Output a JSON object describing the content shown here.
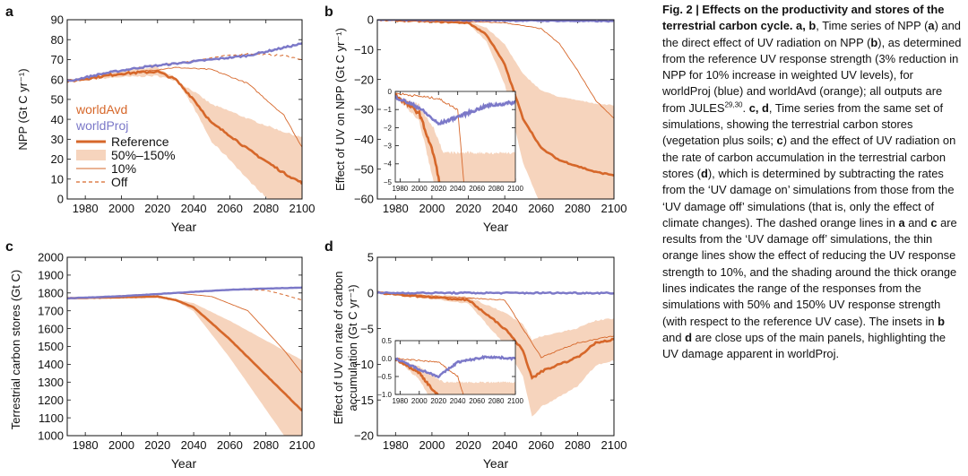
{
  "colors": {
    "orange": "#d6672a",
    "band": "#f6d4bd",
    "blue": "#7b78c8",
    "blueBand": "#c9c7ea"
  },
  "panels": {
    "a": {
      "letter": "a",
      "ylabel": "NPP (Gt C yr⁻¹)"
    },
    "b": {
      "letter": "b",
      "ylabel": "Effect of UV on NPP (Gt C yr⁻¹)"
    },
    "c": {
      "letter": "c",
      "ylabel": "Terrestrial carbon stores (Gt C)"
    },
    "d": {
      "letter": "d",
      "ylabel_line1": "Effect of UV on rate of carbon",
      "ylabel_line2": "accumulation (Gt C yr⁻¹)"
    }
  },
  "xlabel": "Year",
  "legend": {
    "worldAvd": "worldAvd",
    "worldProj": "worldProj",
    "reference": "Reference",
    "band": "50%–150%",
    "ten": "10%",
    "off": "Off"
  },
  "chart_data": [
    {
      "type": "line",
      "id": "a",
      "title": "",
      "xlabel": "Year",
      "ylabel": "NPP (Gt C yr⁻¹)",
      "xlim": [
        1970,
        2100
      ],
      "ylim": [
        0,
        90
      ],
      "xticks": [
        1980,
        2000,
        2020,
        2040,
        2060,
        2080,
        2100
      ],
      "yticks": [
        0,
        10,
        20,
        30,
        40,
        50,
        60,
        70,
        80,
        90
      ],
      "series": [
        {
          "name": "worldProj",
          "x": [
            1970,
            1990,
            2010,
            2030,
            2050,
            2070,
            2090,
            2100
          ],
          "values": [
            59,
            63,
            66,
            68,
            70,
            72,
            76,
            78
          ]
        },
        {
          "name": "worldAvd Reference",
          "x": [
            1970,
            2000,
            2020,
            2030,
            2040,
            2050,
            2060,
            2070,
            2080,
            2090,
            2100
          ],
          "values": [
            59,
            63,
            64,
            60,
            50,
            38,
            32,
            25,
            19,
            13,
            8
          ]
        },
        {
          "name": "worldAvd 10%",
          "x": [
            1970,
            2000,
            2030,
            2050,
            2070,
            2090,
            2100
          ],
          "values": [
            59,
            63,
            66,
            65,
            58,
            42,
            26
          ]
        },
        {
          "name": "worldAvd Off",
          "x": [
            1970,
            1990,
            2010,
            2030,
            2050,
            2070,
            2090,
            2100
          ],
          "values": [
            59,
            63,
            66,
            68,
            71,
            73,
            72,
            70
          ]
        }
      ]
    },
    {
      "type": "line",
      "id": "b",
      "xlabel": "Year",
      "ylabel": "Effect of UV on NPP (Gt C yr⁻¹)",
      "xlim": [
        1970,
        2100
      ],
      "ylim": [
        -60,
        0
      ],
      "xticks": [
        1980,
        2000,
        2020,
        2040,
        2060,
        2080,
        2100
      ],
      "yticks": [
        0,
        -10,
        -20,
        -30,
        -40,
        -50,
        -60
      ],
      "series": [
        {
          "name": "worldProj",
          "x": [
            1970,
            2100
          ],
          "values": [
            0,
            -0.5
          ]
        },
        {
          "name": "worldAvd Reference",
          "x": [
            1970,
            2020,
            2030,
            2040,
            2050,
            2060,
            2070,
            2080,
            2090,
            2100
          ],
          "values": [
            0,
            -1,
            -5,
            -15,
            -33,
            -43,
            -47,
            -49,
            -51,
            -52
          ]
        },
        {
          "name": "worldAvd 10%",
          "x": [
            1970,
            2040,
            2060,
            2070,
            2080,
            2090,
            2100
          ],
          "values": [
            0,
            -1,
            -3,
            -8,
            -17,
            -27,
            -33
          ]
        }
      ],
      "inset": {
        "xlim": [
          1975,
          2100
        ],
        "ylim": [
          -5,
          0
        ],
        "xticks": [
          1980,
          2000,
          2020,
          2040,
          2060,
          2080,
          2100
        ],
        "yticks": [
          0,
          -1,
          -2,
          -3,
          -4,
          -5
        ]
      }
    },
    {
      "type": "line",
      "id": "c",
      "xlabel": "Year",
      "ylabel": "Terrestrial carbon stores (Gt C)",
      "xlim": [
        1970,
        2100
      ],
      "ylim": [
        1000,
        2000
      ],
      "xticks": [
        1980,
        2000,
        2020,
        2040,
        2060,
        2080,
        2100
      ],
      "yticks": [
        1000,
        1100,
        1200,
        1300,
        1400,
        1500,
        1600,
        1700,
        1800,
        1900,
        2000
      ],
      "series": [
        {
          "name": "worldProj",
          "x": [
            1970,
            2000,
            2030,
            2060,
            2080,
            2100
          ],
          "values": [
            1770,
            1782,
            1800,
            1818,
            1825,
            1830
          ]
        },
        {
          "name": "worldAvd Reference",
          "x": [
            1970,
            2020,
            2030,
            2040,
            2050,
            2060,
            2080,
            2100
          ],
          "values": [
            1770,
            1780,
            1760,
            1720,
            1630,
            1540,
            1340,
            1140
          ]
        },
        {
          "name": "worldAvd 10%",
          "x": [
            1970,
            2030,
            2050,
            2070,
            2090,
            2100
          ],
          "values": [
            1770,
            1800,
            1780,
            1700,
            1480,
            1350
          ]
        },
        {
          "name": "worldAvd Off",
          "x": [
            1970,
            2030,
            2060,
            2080,
            2090,
            2100
          ],
          "values": [
            1770,
            1800,
            1820,
            1815,
            1790,
            1760
          ]
        }
      ]
    },
    {
      "type": "line",
      "id": "d",
      "xlabel": "Year",
      "ylabel": "Effect of UV on rate of carbon accumulation (Gt C yr⁻¹)",
      "xlim": [
        1970,
        2100
      ],
      "ylim": [
        -20,
        5
      ],
      "xticks": [
        1980,
        2000,
        2020,
        2040,
        2060,
        2080,
        2100
      ],
      "yticks": [
        5,
        0,
        -5,
        -10,
        -15,
        -20
      ],
      "series": [
        {
          "name": "worldProj",
          "x": [
            1970,
            2100
          ],
          "values": [
            0,
            0
          ]
        },
        {
          "name": "worldAvd Reference",
          "x": [
            1970,
            2020,
            2030,
            2040,
            2050,
            2055,
            2060,
            2070,
            2080,
            2090,
            2100
          ],
          "values": [
            0,
            -1,
            -3,
            -5,
            -8,
            -12,
            -11,
            -10,
            -9,
            -7,
            -6.5
          ]
        },
        {
          "name": "worldAvd 10%",
          "x": [
            1970,
            2040,
            2050,
            2060,
            2070,
            2080,
            2090,
            2100
          ],
          "values": [
            0,
            -1,
            -5,
            -9,
            -8,
            -7,
            -6.5,
            -6
          ]
        }
      ],
      "inset": {
        "xlim": [
          1975,
          2100
        ],
        "ylim": [
          -1.0,
          0.5
        ],
        "xticks": [
          1980,
          2000,
          2020,
          2040,
          2060,
          2080,
          2100
        ],
        "yticks": [
          0.5,
          0.0,
          -0.5,
          -1.0
        ]
      }
    }
  ],
  "caption": {
    "head": "Fig. 2 | Effects on the productivity and stores of the terrestrial carbon cycle.",
    "p1": " a, b",
    "p2": ", Time series of NPP (",
    "p3": "a",
    "p4": ") and the direct effect of UV radiation on NPP (",
    "p5": "b",
    "p6": "), as determined from the reference UV response strength (3% reduction in NPP for 10% increase in weighted UV levels), for worldProj (blue) and worldAvd (orange); all outputs are from JULES",
    "sup1": "29,30",
    "p7": ". ",
    "p8": "c, d",
    "p9": ", Time series from the same set of simulations, showing the terrestrial carbon stores (vegetation plus soils; ",
    "p10": "c",
    "p11": ") and the effect of UV radiation on the rate of carbon accumulation in the terrestrial carbon stores (",
    "p12": "d",
    "p13": "), which is determined by subtracting the rates from the ‘UV damage on’ simulations from those from the ‘UV damage off’ simulations (that is, only the effect of climate changes). The dashed orange lines in ",
    "p14": "a",
    "p15": " and ",
    "p16": "c",
    "p17": " are results from the ‘UV damage off’ simulations, the thin orange lines show the effect of reducing the UV response strength to 10%, and the shading around the thick orange lines indicates the range of the responses from the simulations with 50% and 150% UV response strength (with respect to the reference UV case). The insets in ",
    "p18": "b",
    "p19": " and ",
    "p20": "d",
    "p21": " are close ups of the main panels, highlighting the UV damage apparent in worldProj."
  }
}
